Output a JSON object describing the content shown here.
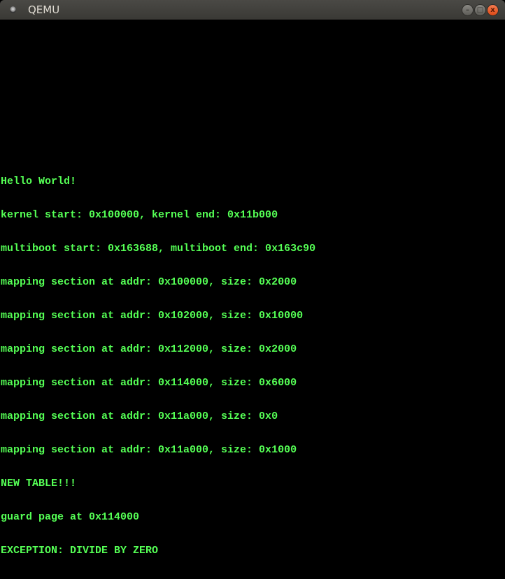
{
  "window": {
    "title": "QEMU",
    "buttons": {
      "minimize": "–",
      "maximize": "□",
      "close": "x"
    }
  },
  "colors": {
    "console_text": "#55ff55",
    "background": "#000000"
  },
  "console": {
    "lines": [
      "Hello World!",
      "kernel start: 0x100000, kernel end: 0x11b000",
      "multiboot start: 0x163688, multiboot end: 0x163c90",
      "mapping section at addr: 0x100000, size: 0x2000",
      "mapping section at addr: 0x102000, size: 0x10000",
      "mapping section at addr: 0x112000, size: 0x2000",
      "mapping section at addr: 0x114000, size: 0x6000",
      "mapping section at addr: 0x11a000, size: 0x0",
      "mapping section at addr: 0x11a000, size: 0x1000",
      "NEW TABLE!!!",
      "guard page at 0x114000",
      "EXCEPTION: DIVIDE BY ZERO"
    ]
  }
}
